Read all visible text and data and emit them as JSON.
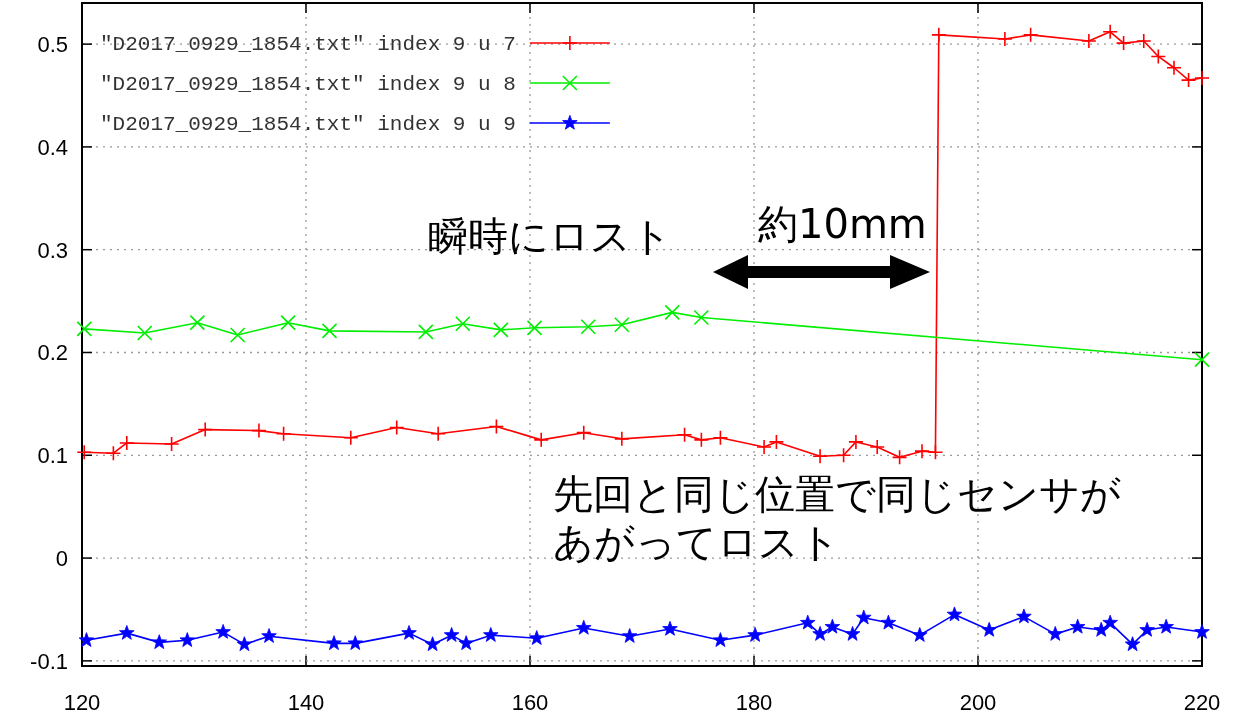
{
  "chart_data": {
    "type": "line",
    "xlim": [
      120,
      220
    ],
    "ylim": [
      -0.105,
      0.54
    ],
    "xticks": [
      120,
      140,
      160,
      180,
      200,
      220
    ],
    "yticks": [
      -0.1,
      0,
      0.1,
      0.2,
      0.3,
      0.4,
      0.5
    ],
    "grid": true,
    "legend": "top left",
    "annotations": [
      "瞬時にロスト",
      "約10mm",
      "先回と同じ位置で同じセンサがあがってロスト"
    ],
    "series": [
      {
        "name": "\"D2017_0929_1854.txt\" index 9 u 7",
        "color": "#ff0000",
        "marker": "plus",
        "x": [
          120.2,
          122.8,
          124,
          128,
          131,
          135.8,
          138,
          144,
          148.1,
          151.8,
          157,
          161,
          164.8,
          168.2,
          173.8,
          175.3,
          177,
          180.9,
          182,
          185.9,
          188,
          189.1,
          191,
          193,
          195,
          196.2,
          196.5,
          202.4,
          204.7,
          209.9,
          211.8,
          213,
          214.8,
          216.1,
          217.5,
          218.8,
          220
        ],
        "values": [
          0.103,
          0.102,
          0.112,
          0.111,
          0.125,
          0.124,
          0.121,
          0.117,
          0.127,
          0.121,
          0.128,
          0.115,
          0.122,
          0.116,
          0.12,
          0.115,
          0.117,
          0.108,
          0.113,
          0.099,
          0.1,
          0.113,
          0.108,
          0.098,
          0.104,
          0.103,
          0.509,
          0.505,
          0.509,
          0.503,
          0.512,
          0.501,
          0.503,
          0.488,
          0.477,
          0.465,
          0.467
        ]
      },
      {
        "name": "\"D2017_0929_1854.txt\" index 9 u 8",
        "color": "#00ee00",
        "marker": "cross",
        "x": [
          120.2,
          125.6,
          130.3,
          133.9,
          138.4,
          142.1,
          150.7,
          154,
          157.4,
          160.4,
          165.2,
          168.2,
          172.7,
          175.3,
          220
        ],
        "values": [
          0.223,
          0.219,
          0.229,
          0.217,
          0.229,
          0.221,
          0.22,
          0.228,
          0.222,
          0.224,
          0.225,
          0.227,
          0.239,
          0.234,
          0.193
        ]
      },
      {
        "name": "\"D2017_0929_1854.txt\" index 9 u 9",
        "color": "#0000ff",
        "marker": "star",
        "x": [
          120.4,
          124,
          126.9,
          129.4,
          132.6,
          134.5,
          136.7,
          142.5,
          144.4,
          149.2,
          151.3,
          153,
          154.3,
          156.5,
          160.6,
          164.8,
          168.9,
          172.5,
          177,
          180.1,
          184.8,
          185.9,
          187,
          188.8,
          189.8,
          192,
          194.8,
          197.9,
          201,
          204.1,
          206.9,
          208.9,
          211,
          211.8,
          213.8,
          215.1,
          216.8,
          220
        ],
        "values": [
          -0.08,
          -0.073,
          -0.082,
          -0.08,
          -0.072,
          -0.084,
          -0.076,
          -0.083,
          -0.083,
          -0.073,
          -0.084,
          -0.075,
          -0.083,
          -0.075,
          -0.078,
          -0.068,
          -0.076,
          -0.069,
          -0.08,
          -0.075,
          -0.063,
          -0.074,
          -0.067,
          -0.074,
          -0.058,
          -0.063,
          -0.075,
          -0.055,
          -0.07,
          -0.057,
          -0.074,
          -0.067,
          -0.07,
          -0.063,
          -0.084,
          -0.07,
          -0.067,
          -0.072
        ]
      }
    ]
  }
}
